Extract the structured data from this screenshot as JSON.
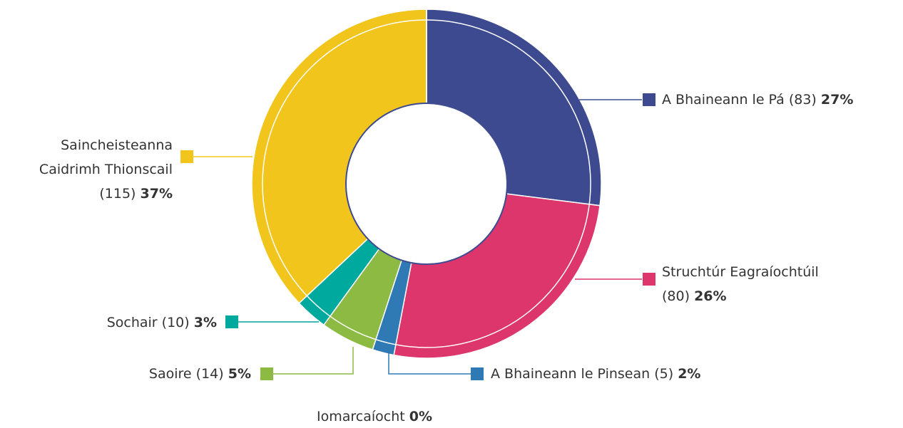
{
  "chart_data": {
    "type": "donut",
    "categories": [
      "A Bhaineann le Pá",
      "Struchtúr Eagraíochtúil",
      "A Bhaineann le Pinsean",
      "Saoire",
      "Sochair",
      "Saincheisteanna Caidrimh Thionscail",
      "Iomarcaíocht"
    ],
    "values": [
      27,
      26,
      2,
      5,
      3,
      37,
      0
    ],
    "value_labels": [
      "27%",
      "26%",
      "2%",
      "5%",
      "3%",
      "37%",
      "0%"
    ],
    "counts": [
      83,
      80,
      5,
      14,
      10,
      115,
      null
    ],
    "count_labels": [
      "(83)",
      "(80)",
      "(5)",
      "(14)",
      "(10)",
      "(115)",
      null
    ],
    "colors": [
      "#3d4a8f",
      "#dc366c",
      "#2f79b5",
      "#8cba43",
      "#00a99d",
      "#f2c51c",
      "#999999"
    ]
  }
}
